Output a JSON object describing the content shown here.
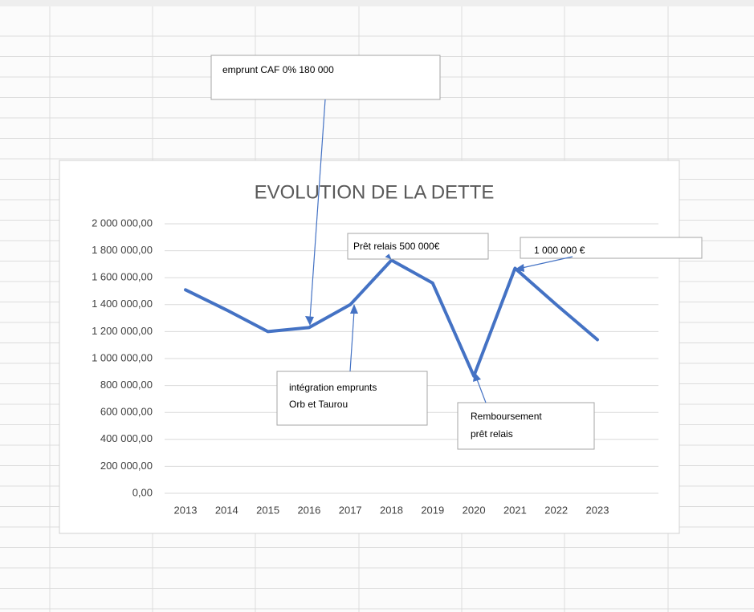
{
  "chart_data": {
    "type": "line",
    "title": "EVOLUTION DE LA DETTE",
    "categories": [
      "2013",
      "2014",
      "2015",
      "2016",
      "2017",
      "2018",
      "2019",
      "2020",
      "2021",
      "2022",
      "2023"
    ],
    "series": [
      {
        "name": "Dette",
        "color": "#4472c4",
        "values": [
          1510000,
          1360000,
          1200000,
          1230000,
          1400000,
          1730000,
          1560000,
          870000,
          1670000,
          1400000,
          1140000
        ]
      }
    ],
    "ylim": [
      0,
      2000000
    ],
    "yticks": [
      {
        "value": 0,
        "label": "0,00"
      },
      {
        "value": 200000,
        "label": "200 000,00"
      },
      {
        "value": 400000,
        "label": "400 000,00"
      },
      {
        "value": 600000,
        "label": "600 000,00"
      },
      {
        "value": 800000,
        "label": "800 000,00"
      },
      {
        "value": 1000000,
        "label": "1 000 000,00"
      },
      {
        "value": 1200000,
        "label": "1 200 000,00"
      },
      {
        "value": 1400000,
        "label": "1 400 000,00"
      },
      {
        "value": 1600000,
        "label": "1 600 000,00"
      },
      {
        "value": 1800000,
        "label": "1 800 000,00"
      },
      {
        "value": 2000000,
        "label": "2 000 000,00"
      }
    ],
    "grid": true,
    "annotations": [
      {
        "lines": [
          "emprunt CAF 0% 180 000"
        ]
      },
      {
        "lines": [
          "Prêt relais 500 000€"
        ]
      },
      {
        "lines": [
          "1 000 000 €"
        ]
      },
      {
        "lines": [
          "intégration emprunts",
          "Orb et Taurou"
        ]
      },
      {
        "lines": [
          "Remboursement",
          "prêt relais"
        ]
      }
    ]
  }
}
